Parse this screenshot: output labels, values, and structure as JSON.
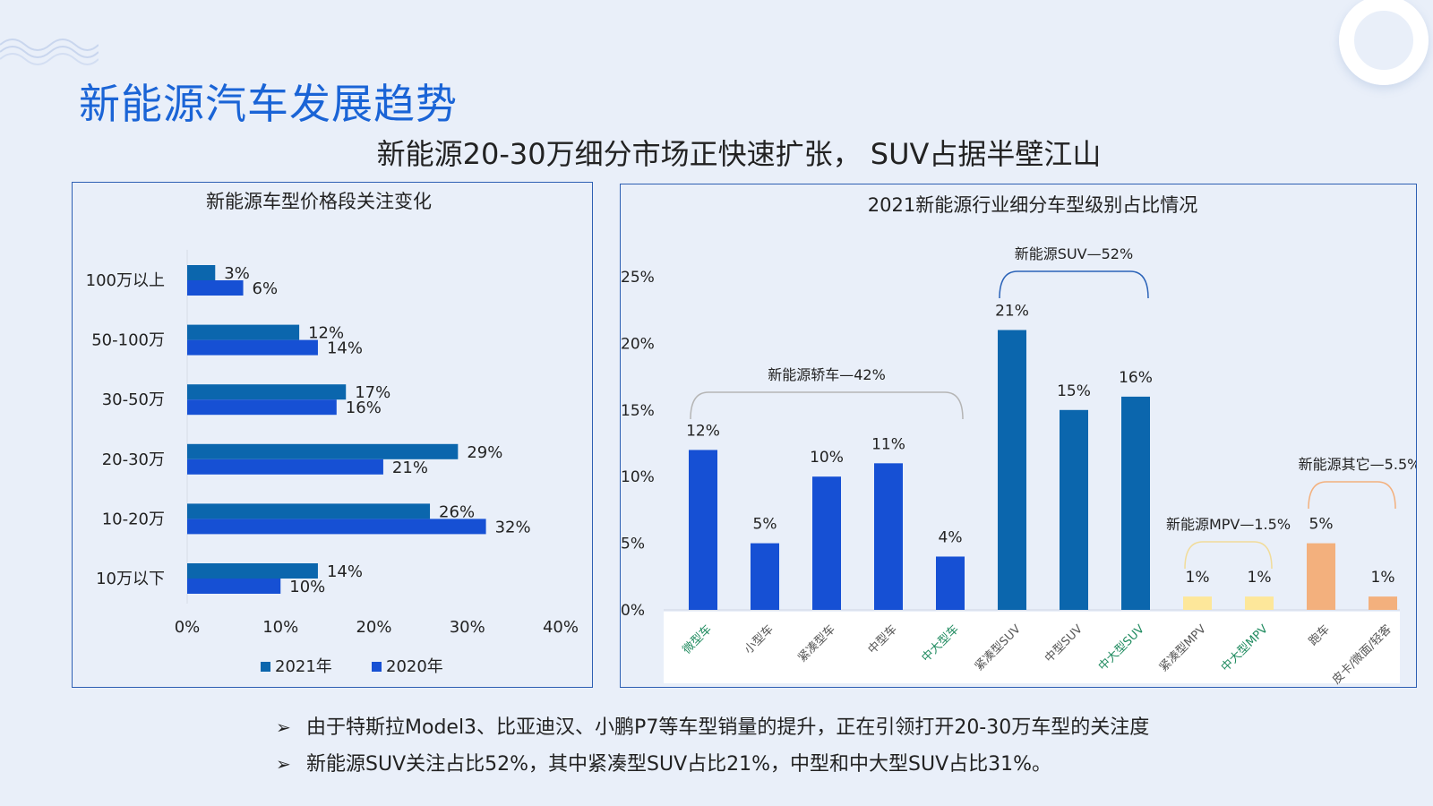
{
  "header": {
    "title": "新能源汽车发展趋势",
    "subtitle": "新能源20-30万细分市场正快速扩张， SUV占据半壁江山"
  },
  "colors": {
    "title_blue": "#1a64d6",
    "series_2021": "#0b66ad",
    "series_2020": "#1650d4",
    "suv": "#0b66ad",
    "sedan": "#1650d4",
    "mpv": "#fde79a",
    "other": "#f3b07d",
    "background": "#e9eff9"
  },
  "chart_data": [
    {
      "type": "bar",
      "orientation": "horizontal",
      "title": "新能源车型价格段关注变化",
      "categories": [
        "100万以上",
        "50-100万",
        "30-50万",
        "20-30万",
        "10-20万",
        "10万以下"
      ],
      "series": [
        {
          "name": "2021年",
          "values": [
            3,
            12,
            17,
            29,
            26,
            14
          ],
          "labels": [
            "3%",
            "12%",
            "17%",
            "29%",
            "26%",
            "14%"
          ]
        },
        {
          "name": "2020年",
          "values": [
            6,
            14,
            16,
            21,
            32,
            10
          ],
          "labels": [
            "6%",
            "14%",
            "16%",
            "21%",
            "32%",
            "10%"
          ]
        }
      ],
      "xlim": [
        0,
        40
      ],
      "xticks": [
        "0%",
        "10%",
        "20%",
        "30%",
        "40%"
      ],
      "legend": "bottom",
      "grid": false
    },
    {
      "type": "bar",
      "title": "2021新能源行业细分车型级别占比情况",
      "categories": [
        "微型车",
        "小型车",
        "紧凑型车",
        "中型车",
        "中大型车",
        "紧凑型SUV",
        "中型SUV",
        "中大型SUV",
        "紧凑型MPV",
        "中大型MPV",
        "跑车",
        "皮卡/微面/轻客"
      ],
      "values": [
        12,
        5,
        10,
        11,
        4,
        21,
        15,
        16,
        1,
        1,
        5,
        1
      ],
      "labels": [
        "12%",
        "5%",
        "10%",
        "11%",
        "4%",
        "21%",
        "15%",
        "16%",
        "1%",
        "1%",
        "5%",
        "1%"
      ],
      "groups": [
        "sedan",
        "sedan",
        "sedan",
        "sedan",
        "sedan",
        "suv",
        "suv",
        "suv",
        "mpv",
        "mpv",
        "other",
        "other"
      ],
      "green_categories": [
        0,
        4,
        7,
        9
      ],
      "ylim": [
        0,
        25
      ],
      "yticks": [
        "0%",
        "5%",
        "10%",
        "15%",
        "20%",
        "25%"
      ],
      "annotations": [
        {
          "text": "新能源轿车—42%",
          "from": 0,
          "to": 4
        },
        {
          "text": "新能源SUV—52%",
          "from": 5,
          "to": 7
        },
        {
          "text": "新能源MPV—1.5%",
          "from": 8,
          "to": 9
        },
        {
          "text": "新能源其它—5.5%",
          "from": 10,
          "to": 11
        }
      ],
      "grid": false
    }
  ],
  "bullets": [
    "由于特斯拉Model3、比亚迪汉、小鹏P7等车型销量的提升，正在引领打开20-30万车型的关注度",
    "新能源SUV关注占比52%，其中紧凑型SUV占比21%，中型和中大型SUV占比31%。"
  ],
  "bullet_marker": "➢"
}
